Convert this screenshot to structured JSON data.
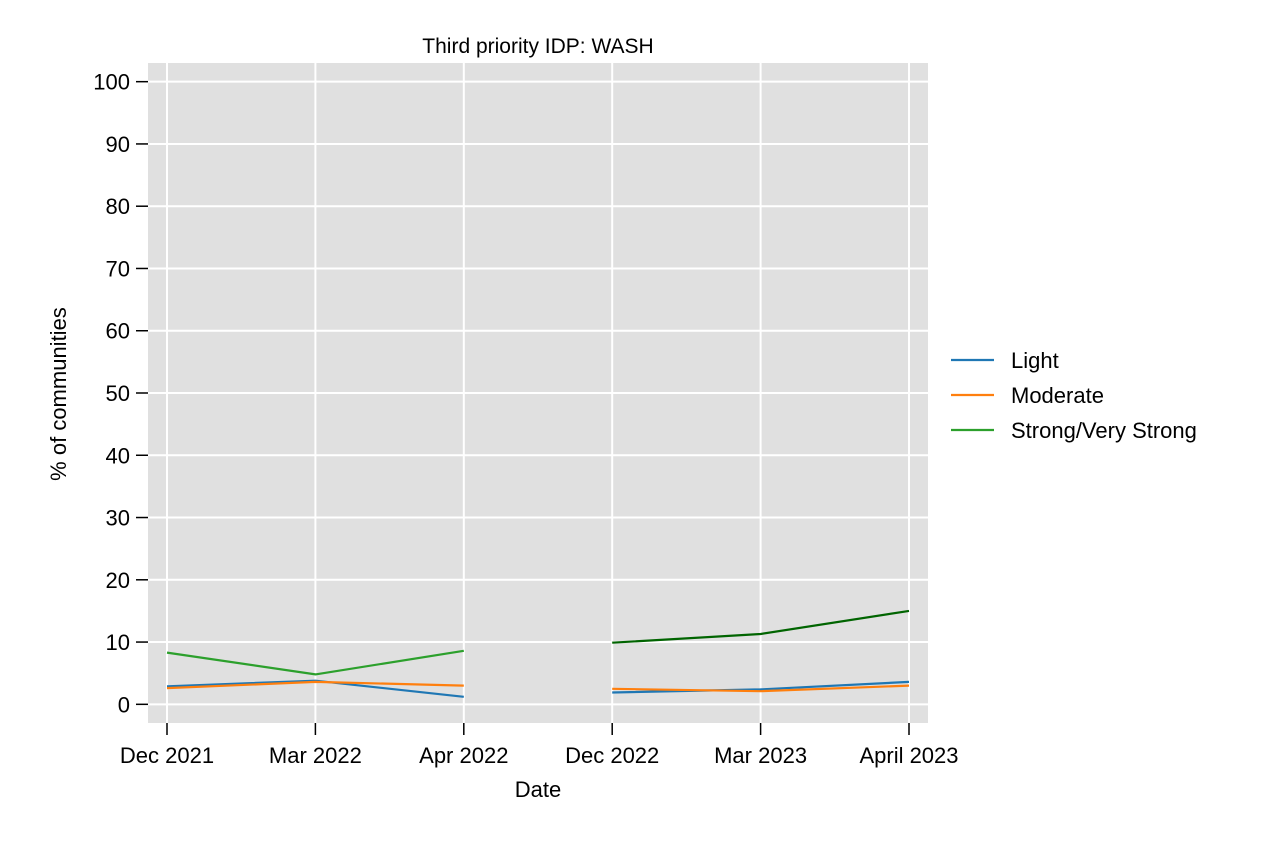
{
  "chart_data": {
    "type": "line",
    "title": "Third priority IDP: WASH",
    "xlabel": "Date",
    "ylabel": "% of communities",
    "categories": [
      "Dec 2021",
      "Mar 2022",
      "Apr 2022",
      "Dec 2022",
      "Mar 2023",
      "April 2023"
    ],
    "ylim": [
      -3,
      103
    ],
    "yticks": [
      0,
      10,
      20,
      30,
      40,
      50,
      60,
      70,
      80,
      90,
      100
    ],
    "grid": true,
    "legend_position": "right",
    "background": "#e0e0e0",
    "series": [
      {
        "name": "Light",
        "color": "#1f77b4",
        "values": [
          2.9,
          3.8,
          1.2,
          1.9,
          2.4,
          3.6
        ]
      },
      {
        "name": "Moderate",
        "color": "#ff7f0e",
        "values": [
          2.6,
          3.6,
          3.0,
          2.5,
          2.1,
          3.0
        ]
      },
      {
        "name": "Strong/Very Strong",
        "color": "#2ca02c",
        "values": [
          8.3,
          4.8,
          8.6,
          9.9,
          11.3,
          15.0
        ],
        "segment_colors": [
          "#2ca02c",
          "#006400"
        ]
      }
    ],
    "segments": [
      [
        0,
        2
      ],
      [
        3,
        5
      ]
    ]
  }
}
